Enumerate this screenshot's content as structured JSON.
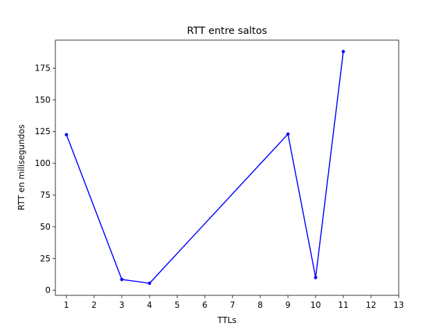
{
  "chart_data": {
    "type": "line",
    "title": "RTT entre saltos",
    "xlabel": "TTLs",
    "ylabel": "RTT en milisegundos",
    "xlim": [
      0.6,
      13
    ],
    "ylim": [
      -4,
      197
    ],
    "xticks": [
      1,
      2,
      3,
      4,
      5,
      6,
      7,
      8,
      9,
      10,
      11,
      12,
      13
    ],
    "yticks": [
      0,
      25,
      50,
      75,
      100,
      125,
      150,
      175
    ],
    "grid": false,
    "series": [
      {
        "color": "#0000ff",
        "marker": "dot",
        "x": [
          1,
          3,
          4,
          9,
          10,
          11
        ],
        "y": [
          122.5,
          8.5,
          5.5,
          123,
          10,
          188
        ]
      }
    ]
  }
}
